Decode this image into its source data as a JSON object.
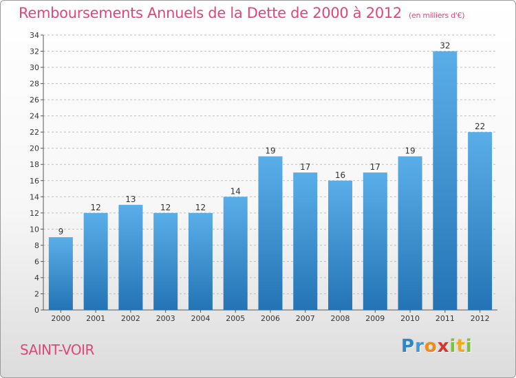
{
  "title": "Remboursements Annuels de la Dette de 2000 à 2012",
  "unit": "(en milliers d'€)",
  "commune": "SAINT-VOIR",
  "logo": {
    "text": "Proxiti",
    "letters": [
      {
        "ch": "P",
        "color": "#2e86c9"
      },
      {
        "ch": "r",
        "color": "#3a9ad6"
      },
      {
        "ch": "o",
        "color": "#f08a1c"
      },
      {
        "ch": "x",
        "color": "#d8362b"
      },
      {
        "ch": "i",
        "color": "#7cc23a"
      },
      {
        "ch": "t",
        "color": "#f0a81c"
      },
      {
        "ch": "i",
        "color": "#7cc23a"
      }
    ]
  },
  "colors": {
    "title": "#e0457b",
    "bar_top": "#5aaee8",
    "bar_bottom": "#2474b5",
    "grid": "#bfbfbf",
    "axis": "#555555"
  },
  "chart_data": {
    "type": "bar",
    "title": "Remboursements Annuels de la Dette de 2000 à 2012",
    "categories": [
      "2000",
      "2001",
      "2002",
      "2003",
      "2004",
      "2005",
      "2006",
      "2007",
      "2008",
      "2009",
      "2010",
      "2011",
      "2012"
    ],
    "values": [
      9,
      12,
      13,
      12,
      12,
      14,
      19,
      17,
      16,
      17,
      19,
      32,
      22
    ],
    "ylim": [
      0,
      34
    ],
    "yticks": [
      0,
      2,
      4,
      6,
      8,
      10,
      12,
      14,
      16,
      18,
      20,
      22,
      24,
      26,
      28,
      30,
      32,
      34
    ],
    "grid": "horizontal dashed",
    "data_labels": true
  }
}
